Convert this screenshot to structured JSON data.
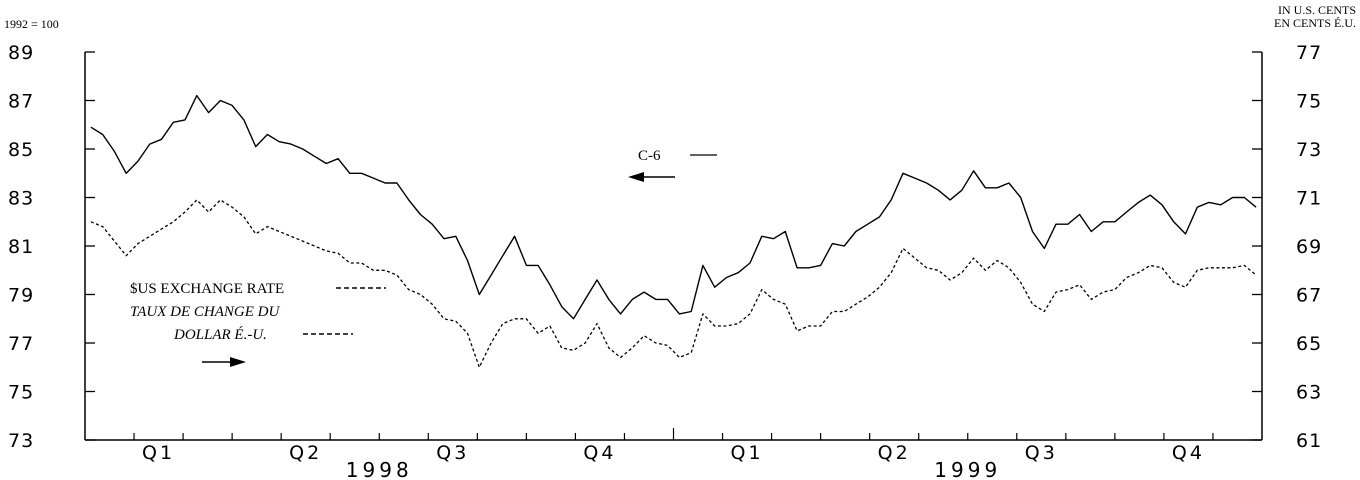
{
  "header": {
    "left_unit": "1992 = 100",
    "right_unit_line1": "IN U.S. CENTS",
    "right_unit_line2": "EN CENTS É.U."
  },
  "legend": {
    "c6_label": "C-6",
    "fx_label_en": "$US EXCHANGE RATE",
    "fx_label_fr_line1": "TAUX DE CHANGE DU",
    "fx_label_fr_line2": "DOLLAR É.-U."
  },
  "chart_data": {
    "type": "line",
    "title": "",
    "left_axis": {
      "ylim": [
        73,
        89
      ],
      "ticks": [
        73,
        75,
        77,
        79,
        81,
        83,
        85,
        87,
        89
      ]
    },
    "right_axis": {
      "ylim": [
        61,
        77
      ],
      "ticks": [
        61,
        63,
        65,
        67,
        69,
        71,
        73,
        75,
        77
      ]
    },
    "x_axis": {
      "quarters": [
        "Q1",
        "Q2",
        "Q3",
        "Q4",
        "Q1",
        "Q2",
        "Q3",
        "Q4"
      ],
      "years": [
        "1998",
        "1999"
      ],
      "weeks_per_year": 52
    },
    "grid": false,
    "series": [
      {
        "name": "C-6",
        "axis": "left",
        "style": "solid",
        "values": [
          85.9,
          85.6,
          84.9,
          84.0,
          84.5,
          85.2,
          85.4,
          86.1,
          86.2,
          87.2,
          86.5,
          87.0,
          86.8,
          86.2,
          85.1,
          85.6,
          85.3,
          85.2,
          85.0,
          84.7,
          84.4,
          84.6,
          84.0,
          84.0,
          83.8,
          83.6,
          83.6,
          82.9,
          82.3,
          81.9,
          81.3,
          81.4,
          80.4,
          79.0,
          79.8,
          80.6,
          81.4,
          80.2,
          80.2,
          79.4,
          78.5,
          78.0,
          78.8,
          79.6,
          78.8,
          78.2,
          78.8,
          79.1,
          78.8,
          78.8,
          78.2,
          78.3,
          80.2,
          79.3,
          79.7,
          79.9,
          80.3,
          81.4,
          81.3,
          81.6,
          80.1,
          80.1,
          80.2,
          81.1,
          81.0,
          81.6,
          81.9,
          82.2,
          82.9,
          84.0,
          83.8,
          83.6,
          83.3,
          82.9,
          83.3,
          84.1,
          83.4,
          83.4,
          83.6,
          83.0,
          81.6,
          80.9,
          81.9,
          81.9,
          82.3,
          81.6,
          82.0,
          82.0,
          82.4,
          82.8,
          83.1,
          82.7,
          82.0,
          81.5,
          82.6,
          82.8,
          82.7,
          83.0,
          83.0,
          82.6
        ]
      },
      {
        "name": "$US EXCHANGE RATE",
        "axis": "right",
        "style": "dashed",
        "values": [
          70.0,
          69.8,
          69.2,
          68.6,
          69.1,
          69.4,
          69.7,
          70.0,
          70.4,
          70.9,
          70.4,
          70.9,
          70.6,
          70.2,
          69.5,
          69.8,
          69.6,
          69.4,
          69.2,
          69.0,
          68.8,
          68.7,
          68.3,
          68.3,
          68.0,
          68.0,
          67.8,
          67.2,
          67.0,
          66.6,
          66.0,
          65.9,
          65.4,
          64.0,
          65.0,
          65.8,
          66.0,
          66.0,
          65.4,
          65.7,
          64.8,
          64.7,
          65.0,
          65.8,
          64.8,
          64.4,
          64.8,
          65.3,
          65.0,
          64.9,
          64.4,
          64.6,
          66.2,
          65.7,
          65.7,
          65.8,
          66.2,
          67.2,
          66.8,
          66.6,
          65.5,
          65.7,
          65.7,
          66.3,
          66.3,
          66.6,
          66.9,
          67.3,
          67.9,
          68.9,
          68.5,
          68.1,
          68.0,
          67.6,
          67.9,
          68.5,
          68.0,
          68.4,
          68.1,
          67.5,
          66.6,
          66.3,
          67.1,
          67.2,
          67.4,
          66.8,
          67.1,
          67.2,
          67.7,
          67.9,
          68.2,
          68.1,
          67.5,
          67.3,
          68.0,
          68.1,
          68.1,
          68.1,
          68.2,
          67.8
        ]
      }
    ]
  }
}
